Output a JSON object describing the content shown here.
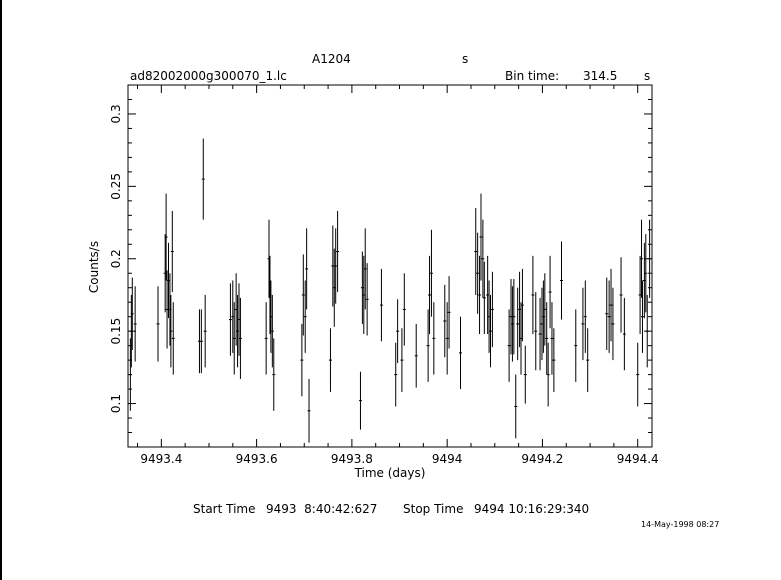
{
  "header": {
    "source": "A1204",
    "units_marker": "s",
    "filename": "ad82002000g300070_1.lc",
    "bin_time_label": "Bin time:",
    "bin_time_value": "314.5",
    "bin_time_unit": "s"
  },
  "footer": {
    "start_label": "Start Time",
    "start_value": "9493  8:40:42:627",
    "stop_label": "Stop Time",
    "stop_value": "9494 10:16:29:340",
    "timestamp": "14-May-1998 08:27"
  },
  "chart_data": {
    "type": "scatter",
    "title": "",
    "xlabel": "Time (days)",
    "ylabel": "Counts/s",
    "xlim": [
      9493.33,
      9494.43
    ],
    "ylim": [
      0.07,
      0.32
    ],
    "x_ticks": [
      9493.4,
      9493.6,
      9493.8,
      9494.0,
      9494.2,
      9494.4
    ],
    "x_tick_labels": [
      "9493.4",
      "9493.6",
      "9493.8",
      "9494",
      "9494.2",
      "9494.4"
    ],
    "y_ticks": [
      0.1,
      0.15,
      0.2,
      0.25,
      0.3
    ],
    "y_tick_labels": [
      "0.1",
      "0.15",
      "0.2",
      "0.25",
      "0.3"
    ],
    "grid": false,
    "error_bars": "vertical, approx. ±0.028 counts/s",
    "points": [
      [
        9493.335,
        0.12,
        0.025
      ],
      [
        9493.337,
        0.15,
        0.025
      ],
      [
        9493.339,
        0.162,
        0.025
      ],
      [
        9493.345,
        0.155,
        0.026
      ],
      [
        9493.393,
        0.155,
        0.026
      ],
      [
        9493.408,
        0.19,
        0.027
      ],
      [
        9493.41,
        0.215,
        0.03
      ],
      [
        9493.412,
        0.165,
        0.027
      ],
      [
        9493.415,
        0.185,
        0.026
      ],
      [
        9493.418,
        0.165,
        0.025
      ],
      [
        9493.42,
        0.15,
        0.025
      ],
      [
        9493.423,
        0.205,
        0.028
      ],
      [
        9493.425,
        0.145,
        0.025
      ],
      [
        9493.48,
        0.143,
        0.022
      ],
      [
        9493.484,
        0.143,
        0.022
      ],
      [
        9493.488,
        0.255,
        0.028
      ],
      [
        9493.492,
        0.15,
        0.025
      ],
      [
        9493.545,
        0.158,
        0.025
      ],
      [
        9493.55,
        0.16,
        0.025
      ],
      [
        9493.553,
        0.145,
        0.025
      ],
      [
        9493.557,
        0.165,
        0.025
      ],
      [
        9493.56,
        0.15,
        0.025
      ],
      [
        9493.563,
        0.158,
        0.025
      ],
      [
        9493.566,
        0.145,
        0.028
      ],
      [
        9493.62,
        0.145,
        0.025
      ],
      [
        9493.626,
        0.2,
        0.027
      ],
      [
        9493.628,
        0.175,
        0.027
      ],
      [
        9493.63,
        0.16,
        0.025
      ],
      [
        9493.633,
        0.15,
        0.025
      ],
      [
        9493.636,
        0.12,
        0.025
      ],
      [
        9493.695,
        0.13,
        0.025
      ],
      [
        9493.698,
        0.175,
        0.028
      ],
      [
        9493.702,
        0.16,
        0.025
      ],
      [
        9493.705,
        0.193,
        0.028
      ],
      [
        9493.71,
        0.095,
        0.022
      ],
      [
        9493.755,
        0.13,
        0.022
      ],
      [
        9493.76,
        0.195,
        0.028
      ],
      [
        9493.763,
        0.18,
        0.027
      ],
      [
        9493.766,
        0.195,
        0.026
      ],
      [
        9493.77,
        0.205,
        0.028
      ],
      [
        9493.818,
        0.102,
        0.02
      ],
      [
        9493.822,
        0.18,
        0.025
      ],
      [
        9493.825,
        0.175,
        0.027
      ],
      [
        9493.828,
        0.193,
        0.028
      ],
      [
        9493.832,
        0.172,
        0.025
      ],
      [
        9493.862,
        0.168,
        0.025
      ],
      [
        9493.892,
        0.12,
        0.022
      ],
      [
        9493.896,
        0.15,
        0.022
      ],
      [
        9493.905,
        0.13,
        0.022
      ],
      [
        9493.91,
        0.165,
        0.025
      ],
      [
        9493.935,
        0.133,
        0.022
      ],
      [
        9493.96,
        0.14,
        0.025
      ],
      [
        9493.963,
        0.175,
        0.027
      ],
      [
        9493.967,
        0.19,
        0.03
      ],
      [
        9493.972,
        0.145,
        0.025
      ],
      [
        9493.995,
        0.157,
        0.025
      ],
      [
        9494.0,
        0.145,
        0.025
      ],
      [
        9494.004,
        0.163,
        0.025
      ],
      [
        9494.028,
        0.135,
        0.025
      ],
      [
        9494.06,
        0.205,
        0.03
      ],
      [
        9494.064,
        0.19,
        0.028
      ],
      [
        9494.068,
        0.175,
        0.027
      ],
      [
        9494.071,
        0.215,
        0.03
      ],
      [
        9494.075,
        0.2,
        0.027
      ],
      [
        9494.078,
        0.173,
        0.025
      ],
      [
        9494.085,
        0.175,
        0.027
      ],
      [
        9494.088,
        0.16,
        0.025
      ],
      [
        9494.091,
        0.15,
        0.025
      ],
      [
        9494.095,
        0.165,
        0.026
      ],
      [
        9494.13,
        0.14,
        0.025
      ],
      [
        9494.134,
        0.16,
        0.026
      ],
      [
        9494.137,
        0.155,
        0.026
      ],
      [
        9494.14,
        0.16,
        0.026
      ],
      [
        9494.144,
        0.098,
        0.022
      ],
      [
        9494.148,
        0.155,
        0.025
      ],
      [
        9494.152,
        0.165,
        0.026
      ],
      [
        9494.155,
        0.145,
        0.025
      ],
      [
        9494.158,
        0.168,
        0.025
      ],
      [
        9494.164,
        0.12,
        0.02
      ],
      [
        9494.18,
        0.175,
        0.027
      ],
      [
        9494.186,
        0.15,
        0.027
      ],
      [
        9494.195,
        0.148,
        0.025
      ],
      [
        9494.199,
        0.155,
        0.025
      ],
      [
        9494.202,
        0.16,
        0.025
      ],
      [
        9494.205,
        0.165,
        0.025
      ],
      [
        9494.209,
        0.145,
        0.025
      ],
      [
        9494.212,
        0.12,
        0.022
      ],
      [
        9494.216,
        0.177,
        0.025
      ],
      [
        9494.22,
        0.145,
        0.025
      ],
      [
        9494.224,
        0.13,
        0.022
      ],
      [
        9494.24,
        0.185,
        0.027
      ],
      [
        9494.27,
        0.14,
        0.025
      ],
      [
        9494.285,
        0.155,
        0.025
      ],
      [
        9494.29,
        0.16,
        0.025
      ],
      [
        9494.295,
        0.13,
        0.022
      ],
      [
        9494.335,
        0.162,
        0.025
      ],
      [
        9494.34,
        0.16,
        0.025
      ],
      [
        9494.344,
        0.168,
        0.025
      ],
      [
        9494.348,
        0.155,
        0.025
      ],
      [
        9494.365,
        0.175,
        0.026
      ],
      [
        9494.372,
        0.148,
        0.025
      ],
      [
        9494.4,
        0.12,
        0.022
      ],
      [
        9494.405,
        0.175,
        0.027
      ],
      [
        9494.408,
        0.2,
        0.027
      ],
      [
        9494.41,
        0.16,
        0.025
      ],
      [
        9494.414,
        0.185,
        0.026
      ],
      [
        9494.417,
        0.19,
        0.027
      ],
      [
        9494.42,
        0.15,
        0.025
      ],
      [
        9494.425,
        0.2,
        0.027
      ]
    ]
  }
}
